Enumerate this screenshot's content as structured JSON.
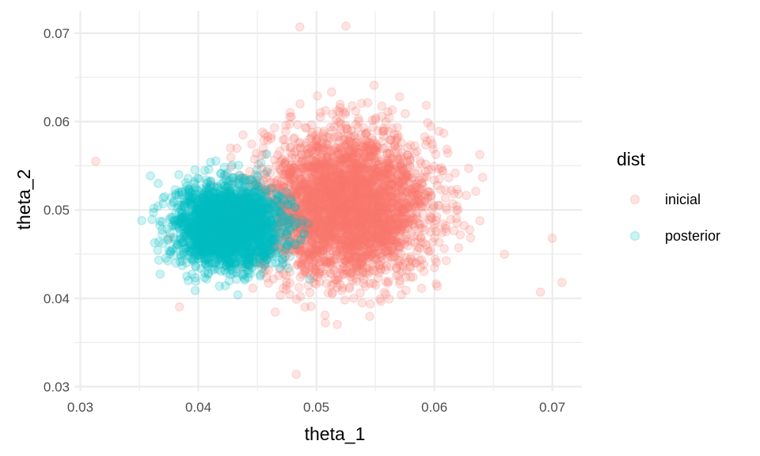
{
  "chart_data": {
    "type": "scatter",
    "xlabel": "theta_1",
    "ylabel": "theta_2",
    "xlim": [
      0.0295,
      0.0725
    ],
    "ylim": [
      0.0295,
      0.0725
    ],
    "x_ticks": [
      0.03,
      0.04,
      0.05,
      0.06,
      0.07
    ],
    "y_ticks": [
      0.03,
      0.04,
      0.05,
      0.06,
      0.07
    ],
    "x_tick_labels": [
      "0.03",
      "0.04",
      "0.05",
      "0.06",
      "0.07"
    ],
    "y_tick_labels": [
      "0.03",
      "0.04",
      "0.05",
      "0.06",
      "0.07"
    ],
    "grid": true,
    "point_alpha": 0.2,
    "legend": {
      "title": "dist",
      "position": "right",
      "entries": [
        "inicial",
        "posterior"
      ]
    },
    "series": [
      {
        "name": "inicial",
        "color": "#F8766D",
        "distribution": {
          "mean_x": 0.0525,
          "mean_y": 0.0505,
          "sd_x": 0.0036,
          "sd_y": 0.0041
        },
        "n_points": 3500,
        "notable_points": [
          [
            0.0313,
            0.0555
          ],
          [
            0.0708,
            0.0418
          ],
          [
            0.0483,
            0.0314
          ],
          [
            0.0486,
            0.0707
          ],
          [
            0.0525,
            0.0708
          ],
          [
            0.07,
            0.0468
          ],
          [
            0.069,
            0.0407
          ]
        ]
      },
      {
        "name": "posterior",
        "color": "#00BFC4",
        "distribution": {
          "mean_x": 0.0425,
          "mean_y": 0.0482,
          "sd_x": 0.0022,
          "sd_y": 0.0023
        },
        "n_points": 2500,
        "notable_points": [
          [
            0.0352,
            0.0488
          ],
          [
            0.0366,
            0.053
          ],
          [
            0.04,
            0.0445
          ],
          [
            0.047,
            0.0505
          ]
        ]
      }
    ]
  }
}
